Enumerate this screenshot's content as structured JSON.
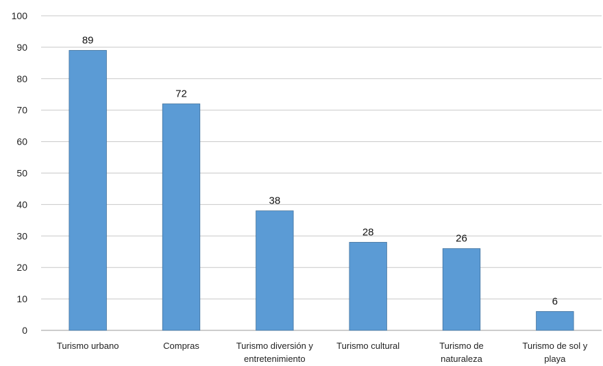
{
  "chart_data": {
    "type": "bar",
    "categories": [
      [
        "Turismo urbano"
      ],
      [
        "Compras"
      ],
      [
        "Turismo diversión y",
        "entretenimiento"
      ],
      [
        "Turismo cultural"
      ],
      [
        "Turismo de",
        "naturaleza"
      ],
      [
        "Turismo de sol y",
        "playa"
      ]
    ],
    "values": [
      89,
      72,
      38,
      28,
      26,
      6
    ],
    "ylim": [
      0,
      100
    ],
    "yticks": [
      0,
      10,
      20,
      30,
      40,
      50,
      60,
      70,
      80,
      90,
      100
    ],
    "grid": true,
    "data_labels": true,
    "bar_color": "#5b9bd5",
    "bar_border_color": "#41719c"
  }
}
